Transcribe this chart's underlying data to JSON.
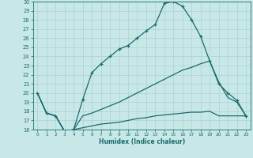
{
  "xlabel": "Humidex (Indice chaleur)",
  "bg_color": "#c8e8e8",
  "line_color": "#1a6b6b",
  "grid_color": "#b0d4d4",
  "xlim": [
    -0.5,
    23.5
  ],
  "ylim": [
    16,
    30
  ],
  "yticks": [
    16,
    17,
    18,
    19,
    20,
    21,
    22,
    23,
    24,
    25,
    26,
    27,
    28,
    29,
    30
  ],
  "xticks": [
    0,
    1,
    2,
    3,
    4,
    5,
    6,
    7,
    8,
    9,
    10,
    11,
    12,
    13,
    14,
    15,
    16,
    17,
    18,
    19,
    20,
    21,
    22,
    23
  ],
  "line1_x": [
    0,
    1,
    2,
    3,
    4,
    5,
    6,
    7,
    8,
    9,
    10,
    11,
    12,
    13,
    14,
    15,
    16,
    17,
    18,
    19,
    20,
    21,
    22,
    23
  ],
  "line1_y": [
    20.0,
    17.8,
    17.5,
    15.8,
    16.0,
    19.3,
    22.2,
    23.2,
    24.0,
    24.8,
    25.2,
    26.0,
    26.8,
    27.5,
    29.8,
    30.0,
    29.5,
    28.0,
    26.2,
    23.5,
    21.0,
    20.0,
    19.2,
    17.5
  ],
  "line2_x": [
    0,
    1,
    2,
    3,
    4,
    5,
    6,
    7,
    8,
    9,
    10,
    11,
    12,
    13,
    14,
    15,
    16,
    17,
    18,
    19,
    20,
    21,
    22,
    23
  ],
  "line2_y": [
    20.0,
    17.8,
    17.5,
    15.8,
    16.0,
    17.5,
    17.8,
    18.2,
    18.6,
    19.0,
    19.5,
    20.0,
    20.5,
    21.0,
    21.5,
    22.0,
    22.5,
    22.8,
    23.2,
    23.5,
    21.2,
    19.5,
    19.0,
    17.5
  ],
  "line3_x": [
    0,
    1,
    2,
    3,
    4,
    5,
    6,
    7,
    8,
    9,
    10,
    11,
    12,
    13,
    14,
    15,
    16,
    17,
    18,
    19,
    20,
    21,
    22,
    23
  ],
  "line3_y": [
    20.0,
    17.8,
    17.5,
    15.8,
    16.0,
    16.2,
    16.4,
    16.6,
    16.7,
    16.8,
    17.0,
    17.2,
    17.3,
    17.5,
    17.6,
    17.7,
    17.8,
    17.9,
    17.9,
    18.0,
    17.5,
    17.5,
    17.5,
    17.5
  ]
}
